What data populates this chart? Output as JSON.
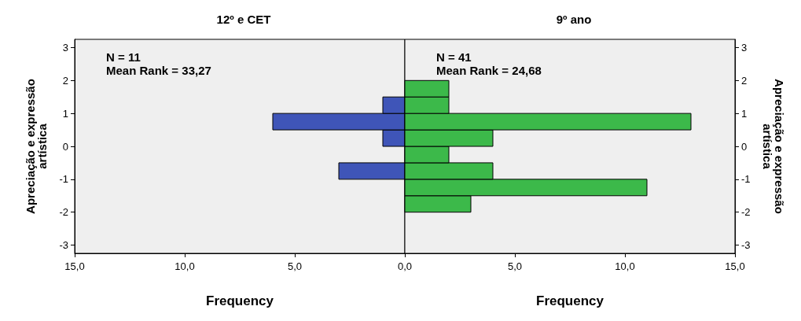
{
  "chart_data": [
    {
      "type": "histogram",
      "orientation": "horizontal",
      "title": "12º e CET",
      "xlabel": "Frequency",
      "ylabel": "Apreciação e expressão artística",
      "annotations": [
        "N = 11",
        "Mean Rank = 33,27"
      ],
      "bins": [
        -2,
        -1.5,
        -1,
        -0.5,
        0,
        0.5,
        1,
        1.5,
        2
      ],
      "values": [
        0,
        0,
        3,
        0,
        1,
        6,
        1,
        0
      ],
      "color": "#3f55b8",
      "xlim": [
        15,
        0
      ],
      "xticks": [
        {
          "value": 15,
          "label": "15,0"
        },
        {
          "value": 10,
          "label": "10,0"
        },
        {
          "value": 5,
          "label": "5,0"
        },
        {
          "value": 0,
          "label": null
        }
      ],
      "ylim": [
        -3.25,
        3.25
      ],
      "yticks": [
        -3,
        -2,
        -1,
        0,
        1,
        2,
        3
      ],
      "grid": false
    },
    {
      "type": "histogram",
      "orientation": "horizontal",
      "title": "9º ano",
      "xlabel": "Frequency",
      "ylabel": "Apreciação e expressão artística",
      "annotations": [
        "N = 41",
        "Mean Rank = 24,68"
      ],
      "bins": [
        -2,
        -1.5,
        -1,
        -0.5,
        0,
        0.5,
        1,
        1.5,
        2
      ],
      "values": [
        3,
        11,
        4,
        2,
        4,
        13,
        2,
        2
      ],
      "color": "#3cb94a",
      "xlim": [
        0,
        15
      ],
      "xticks": [
        {
          "value": 0,
          "label": "0,0"
        },
        {
          "value": 5,
          "label": "5,0"
        },
        {
          "value": 10,
          "label": "10,0"
        },
        {
          "value": 15,
          "label": "15,0"
        }
      ],
      "ylim": [
        -3.25,
        3.25
      ],
      "yticks": [
        -3,
        -2,
        -1,
        0,
        1,
        2,
        3
      ],
      "grid": false
    }
  ]
}
